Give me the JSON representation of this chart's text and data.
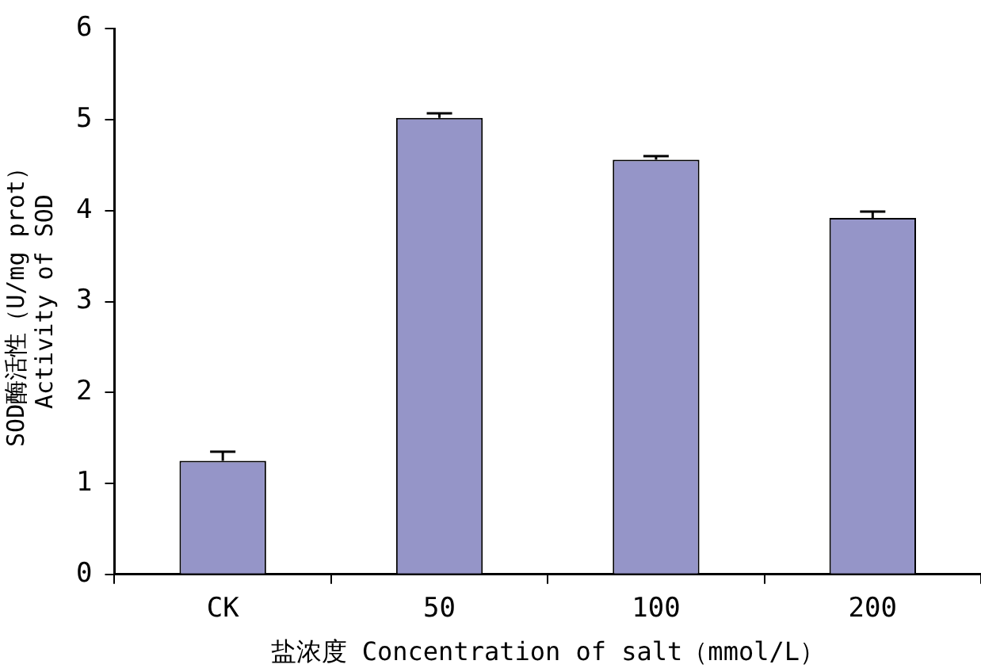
{
  "chart_data": {
    "type": "bar",
    "xlabel": "盐浓度 Concentration of salt（mmol/L）",
    "ylabel": "SOD酶活性（U/mg prot）\nActivity of SOD",
    "categories": [
      "CK",
      "50",
      "100",
      "200"
    ],
    "values": [
      1.25,
      5.02,
      4.56,
      3.92
    ],
    "errors": [
      [
        1.25,
        1.35
      ],
      [
        5.02,
        5.07
      ],
      [
        4.56,
        4.6
      ],
      [
        3.92,
        3.99
      ]
    ],
    "color": "#9595c8",
    "ylim": [
      0,
      6
    ],
    "yticks": [
      0,
      1,
      2,
      3,
      4,
      5,
      6
    ],
    "grid": false,
    "legend": false
  }
}
